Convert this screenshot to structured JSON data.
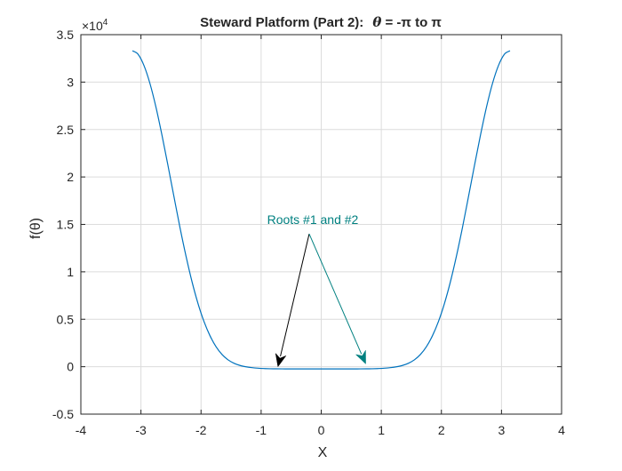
{
  "chart_data": {
    "type": "line",
    "title_text": "Steward Platform (Part 2):",
    "title_theta": "θ",
    "title_range": " = -π to π",
    "xlabel": "X",
    "ylabel": "f(θ)",
    "exponent_label": "×10",
    "exponent_power": "4",
    "xlim": [
      -4,
      4
    ],
    "ylim": [
      -0.5,
      3.5
    ],
    "y_scale": 10000,
    "xticks": [
      -4,
      -3,
      -2,
      -1,
      0,
      1,
      2,
      3,
      4
    ],
    "xtick_labels": [
      "-4",
      "-3",
      "-2",
      "-1",
      "0",
      "1",
      "2",
      "3",
      "4"
    ],
    "yticks": [
      -0.5,
      0,
      0.5,
      1,
      1.5,
      2,
      2.5,
      3,
      3.5
    ],
    "ytick_labels": [
      "-0.5",
      "0",
      "0.5",
      "1",
      "1.5",
      "2",
      "2.5",
      "3",
      "3.5"
    ],
    "grid": true,
    "series": [
      {
        "color": "#0072BD",
        "x": [
          -3.1416,
          -3.05,
          -2.95,
          -2.85,
          -2.75,
          -2.65,
          -2.55,
          -2.45,
          -2.35,
          -2.25,
          -2.15,
          -2.05,
          -1.95,
          -1.85,
          -1.75,
          -1.65,
          -1.55,
          -1.45,
          -1.35,
          -1.25,
          -1.15,
          -1.05,
          -0.95,
          -0.85,
          -0.75,
          -0.65,
          -0.55,
          -0.45,
          -0.35,
          -0.25,
          -0.15,
          -0.05,
          0.05,
          0.15,
          0.25,
          0.35,
          0.45,
          0.55,
          0.65,
          0.75,
          0.85,
          0.95,
          1.05,
          1.15,
          1.25,
          1.35,
          1.45,
          1.55,
          1.65,
          1.75,
          1.85,
          1.95,
          2.05,
          2.15,
          2.25,
          2.35,
          2.45,
          2.55,
          2.65,
          2.75,
          2.85,
          2.95,
          3.05,
          3.1416
        ],
        "y": [
          33300,
          32950,
          31750,
          29850,
          27350,
          24400,
          21200,
          17900,
          14650,
          11650,
          8950,
          6650,
          4750,
          3250,
          2100,
          1280,
          720,
          360,
          130,
          -10,
          -100,
          -160,
          -195,
          -215,
          -225,
          -230,
          -232,
          -233,
          -233,
          -233,
          -233,
          -233,
          -233,
          -233,
          -233,
          -233,
          -233,
          -232,
          -230,
          -225,
          -215,
          -195,
          -160,
          -100,
          -10,
          130,
          360,
          720,
          1280,
          2100,
          3250,
          4750,
          6650,
          8950,
          11650,
          14650,
          17900,
          21200,
          24400,
          27350,
          29850,
          31750,
          32950,
          33300
        ]
      }
    ],
    "annotation": {
      "text": "Roots #1 and #2",
      "text_color": "#008080",
      "origin": {
        "x": -0.2,
        "y": 14000
      },
      "arrows": [
        {
          "to_x": -0.72,
          "to_y": 0,
          "color": "#000000"
        },
        {
          "to_x": 0.74,
          "to_y": 300,
          "color": "#008080"
        }
      ]
    }
  }
}
